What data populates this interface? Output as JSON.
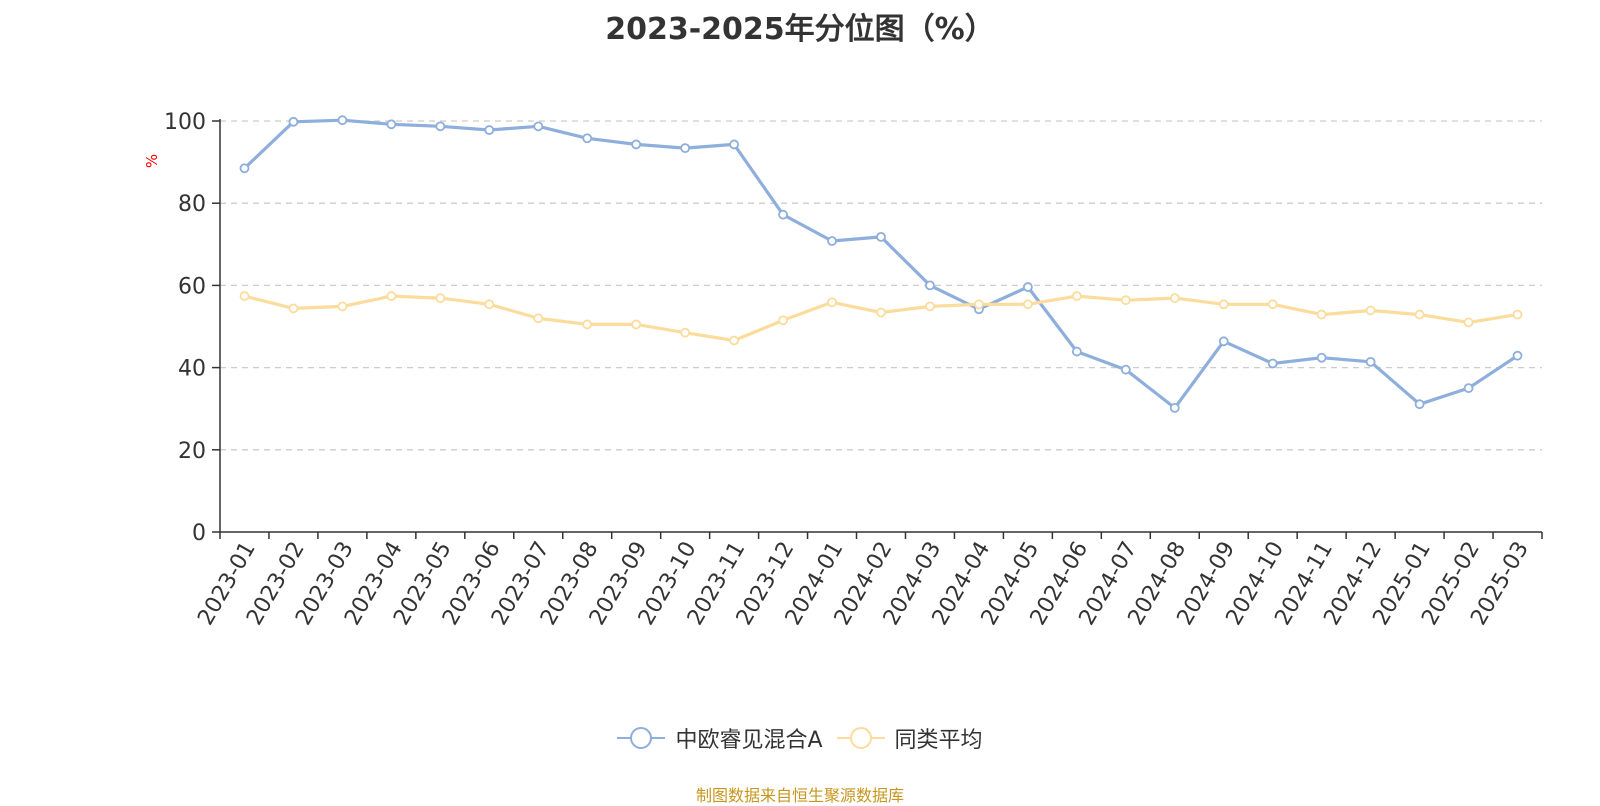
{
  "chart_data": {
    "type": "line",
    "title": "2023-2025年分位图（%）",
    "ylabel": "%",
    "ylim": [
      0,
      100
    ],
    "yticks": [
      0,
      20,
      40,
      60,
      80,
      100
    ],
    "grid": true,
    "legend_position": "bottom",
    "categories": [
      "2023-01",
      "2023-02",
      "2023-03",
      "2023-04",
      "2023-05",
      "2023-06",
      "2023-07",
      "2023-08",
      "2023-09",
      "2023-10",
      "2023-11",
      "2023-12",
      "2024-01",
      "2024-02",
      "2024-03",
      "2024-04",
      "2024-05",
      "2024-06",
      "2024-07",
      "2024-08",
      "2024-09",
      "2024-10",
      "2024-11",
      "2024-12",
      "2025-01",
      "2025-02",
      "2025-03"
    ],
    "series": [
      {
        "name": "中欧睿见混合A",
        "color": "#8eaedc",
        "values": [
          88.5,
          99.8,
          100.2,
          99.2,
          98.7,
          97.8,
          98.7,
          95.8,
          94.3,
          93.4,
          94.3,
          77.2,
          70.8,
          71.8,
          60.0,
          54.2,
          59.6,
          43.9,
          39.5,
          30.2,
          46.4,
          41.0,
          42.4,
          41.4,
          31.1,
          35.0,
          42.9
        ]
      },
      {
        "name": "同类平均",
        "color": "#fbdc9c",
        "values": [
          57.4,
          54.4,
          54.9,
          57.4,
          56.9,
          55.4,
          52.0,
          50.5,
          50.5,
          48.5,
          46.6,
          51.5,
          55.9,
          53.4,
          54.9,
          55.4,
          55.4,
          57.4,
          56.4,
          56.9,
          55.4,
          55.4,
          52.9,
          53.9,
          52.9,
          51.0,
          52.9
        ]
      }
    ]
  },
  "source_note": "制图数据来自恒生聚源数据库"
}
